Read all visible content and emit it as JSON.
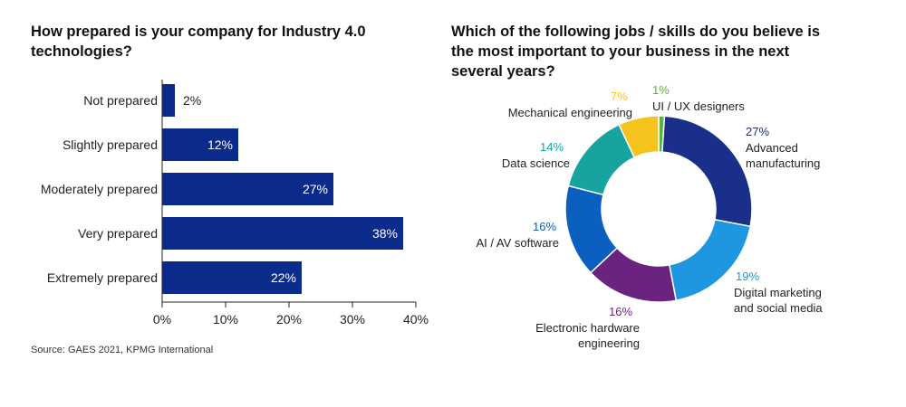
{
  "chart_data": [
    {
      "type": "bar",
      "orientation": "horizontal",
      "title": "How prepared is your company for Industry 4.0 technologies?",
      "categories": [
        "Not prepared",
        "Slightly prepared",
        "Moderately prepared",
        "Very prepared",
        "Extremely prepared"
      ],
      "values": [
        2,
        12,
        27,
        38,
        22
      ],
      "value_labels": [
        "2%",
        "12%",
        "27%",
        "38%",
        "22%"
      ],
      "xlim": [
        0,
        40
      ],
      "xticks": [
        "0%",
        "10%",
        "20%",
        "30%",
        "40%"
      ],
      "color": "#0a2a8c",
      "grid": false
    },
    {
      "type": "pie",
      "donut": true,
      "title": "Which of the following jobs / skills do you believe is the most important to your business in the next several years?",
      "slices": [
        {
          "label": "UI / UX designers",
          "value": 1,
          "pct_label": "1%",
          "color": "#5cb33a"
        },
        {
          "label": "Advanced manufacturing",
          "value": 27,
          "pct_label": "27%",
          "color": "#1a2f8a"
        },
        {
          "label": "Digital marketing and social media",
          "value": 19,
          "pct_label": "19%",
          "color": "#1e96e0"
        },
        {
          "label": "Electronic hardware engineering",
          "value": 16,
          "pct_label": "16%",
          "color": "#6a2480"
        },
        {
          "label": "AI / AV software",
          "value": 16,
          "pct_label": "16%",
          "color": "#0b5fbf"
        },
        {
          "label": "Data science",
          "value": 14,
          "pct_label": "14%",
          "color": "#17a3a0"
        },
        {
          "label": "Mechanical engineering",
          "value": 7,
          "pct_label": "7%",
          "color": "#f5c31c"
        }
      ]
    }
  ],
  "source": "Source: GAES 2021, KPMG International"
}
